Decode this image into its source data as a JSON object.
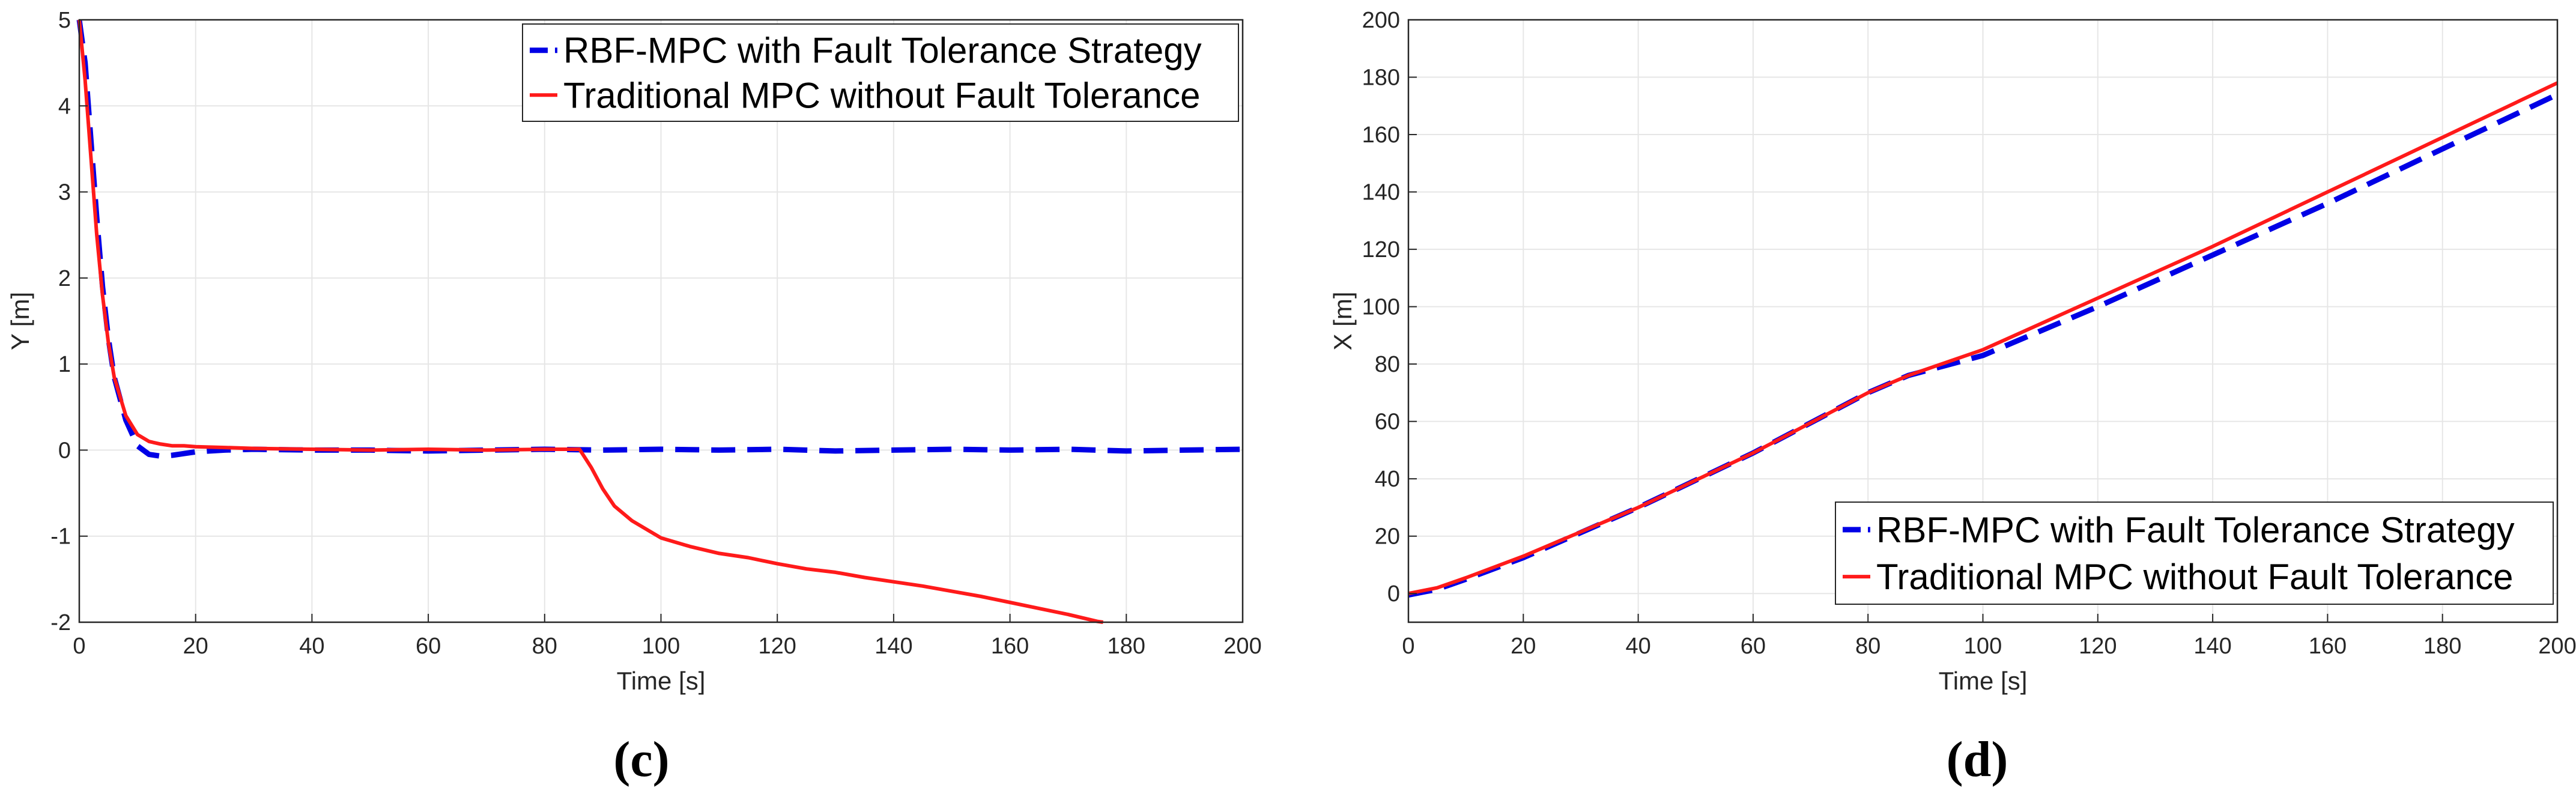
{
  "colors": {
    "rbf": "#0000e6",
    "traditional": "#ff1a1a"
  },
  "chart_data": [
    {
      "type": "line",
      "panel_label": "(c)",
      "xlabel": "Time [s]",
      "ylabel": "Y [m]",
      "xlim": [
        0,
        200
      ],
      "ylim": [
        -2,
        5
      ],
      "xticks": [
        0,
        20,
        40,
        60,
        80,
        100,
        120,
        140,
        160,
        180,
        200
      ],
      "yticks": [
        -2,
        -1,
        0,
        1,
        2,
        3,
        4,
        5
      ],
      "grid": true,
      "legend_position": "top-right",
      "series": [
        {
          "name": "RBF-MPC with Fault Tolerance Strategy",
          "style": "dashed",
          "color": "#0000e6",
          "x": [
            0,
            1,
            2,
            3,
            4,
            5,
            6,
            8,
            10,
            12,
            14,
            16,
            18,
            20,
            25,
            30,
            40,
            50,
            60,
            70,
            80,
            90,
            100,
            110,
            120,
            130,
            140,
            150,
            160,
            170,
            180,
            190,
            200
          ],
          "y": [
            5,
            4.5,
            3.6,
            2.7,
            1.9,
            1.3,
            0.85,
            0.35,
            0.05,
            -0.05,
            -0.07,
            -0.06,
            -0.04,
            -0.02,
            0,
            0.01,
            0,
            0,
            -0.01,
            0,
            0.01,
            0,
            0.01,
            0,
            0.01,
            -0.01,
            0,
            0.01,
            0,
            0.01,
            -0.01,
            0,
            0.01
          ]
        },
        {
          "name": "Traditional MPC without Fault Tolerance",
          "style": "solid",
          "color": "#ff1a1a",
          "x": [
            0,
            1,
            2,
            3,
            4,
            5,
            6,
            8,
            10,
            12,
            14,
            16,
            18,
            20,
            25,
            30,
            40,
            50,
            60,
            70,
            80,
            86,
            88,
            90,
            92,
            95,
            100,
            105,
            110,
            115,
            120,
            125,
            130,
            135,
            140,
            145,
            150,
            155,
            160,
            165,
            170,
            175,
            176
          ],
          "y": [
            5,
            4.3,
            3.4,
            2.5,
            1.8,
            1.25,
            0.85,
            0.4,
            0.18,
            0.1,
            0.07,
            0.05,
            0.05,
            0.04,
            0.03,
            0.02,
            0.01,
            0,
            0.01,
            0,
            0.01,
            0.01,
            -0.2,
            -0.45,
            -0.65,
            -0.82,
            -1.02,
            -1.12,
            -1.2,
            -1.25,
            -1.32,
            -1.38,
            -1.42,
            -1.48,
            -1.53,
            -1.58,
            -1.64,
            -1.7,
            -1.77,
            -1.84,
            -1.91,
            -1.99,
            -2.0
          ]
        }
      ]
    },
    {
      "type": "line",
      "panel_label": "(d)",
      "xlabel": "Time [s]",
      "ylabel": "X [m]",
      "xlim": [
        0,
        200
      ],
      "ylim": [
        -10,
        200
      ],
      "xticks": [
        0,
        20,
        40,
        60,
        80,
        100,
        120,
        140,
        160,
        180,
        200
      ],
      "yticks": [
        0,
        20,
        40,
        60,
        80,
        100,
        120,
        140,
        160,
        180,
        200
      ],
      "grid": true,
      "legend_position": "bottom-right",
      "series": [
        {
          "name": "RBF-MPC with Fault Tolerance Strategy",
          "style": "dashed",
          "color": "#0000e6",
          "x": [
            0,
            5,
            10,
            20,
            40,
            60,
            80,
            87,
            100,
            120,
            140,
            160,
            180,
            200
          ],
          "y": [
            -0.5,
            1.5,
            5,
            12.5,
            30,
            49,
            70,
            76,
            83,
            100,
            118,
            136,
            155,
            174
          ]
        },
        {
          "name": "Traditional MPC without Fault Tolerance",
          "style": "solid",
          "color": "#ff1a1a",
          "x": [
            0,
            5,
            10,
            20,
            40,
            60,
            80,
            87,
            100,
            120,
            140,
            160,
            180,
            200
          ],
          "y": [
            0,
            2,
            5.5,
            13,
            30,
            49,
            70,
            76,
            85,
            103,
            121,
            140,
            159,
            178
          ]
        }
      ]
    }
  ]
}
